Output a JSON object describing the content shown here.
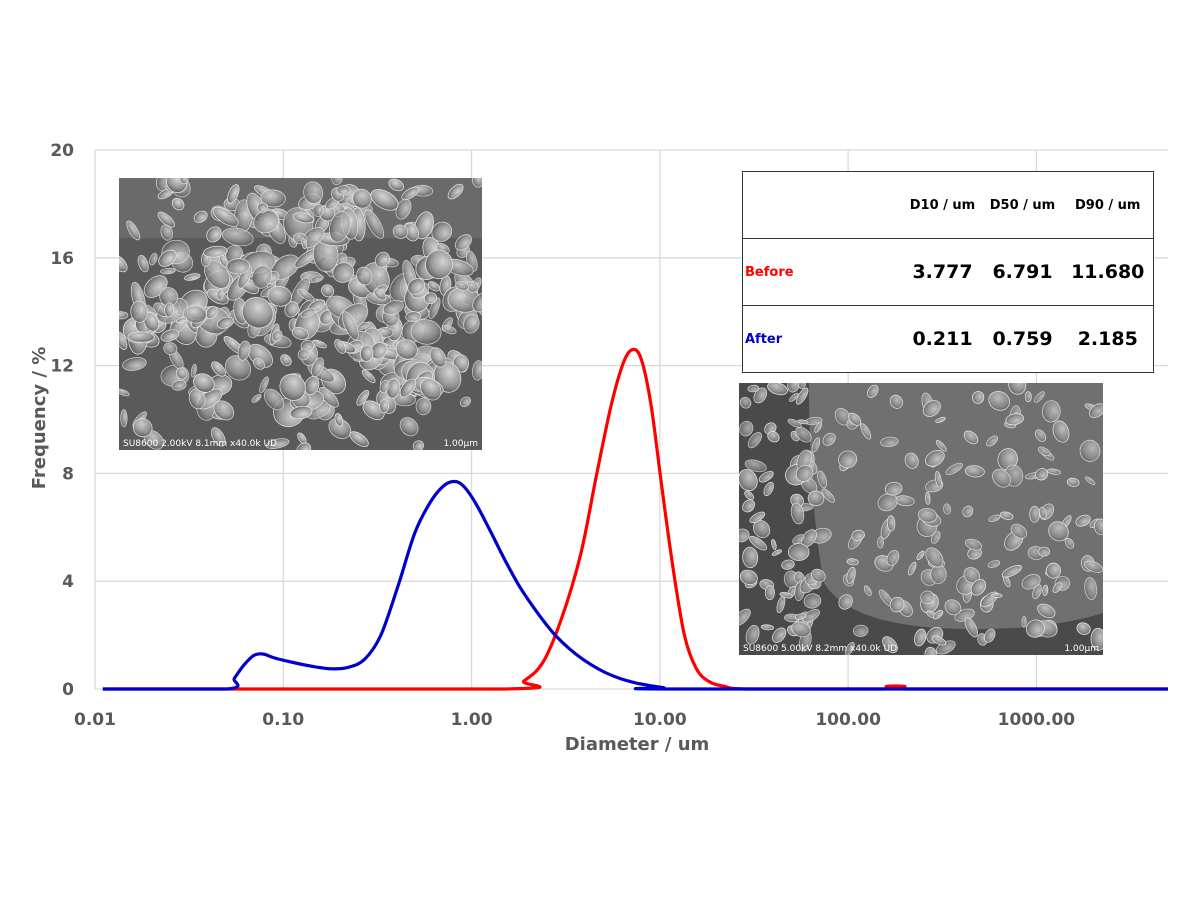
{
  "chart_data": {
    "type": "line",
    "xlabel": "Diameter / um",
    "ylabel": "Frequency / %",
    "x_scale": "log",
    "xlim": [
      0.01,
      5000
    ],
    "ylim": [
      0,
      20
    ],
    "x_ticks": [
      0.01,
      0.1,
      1,
      10,
      100,
      1000
    ],
    "x_tick_labels": [
      "0.01",
      "0.10",
      "1.00",
      "10.00",
      "100.00",
      "1000.00"
    ],
    "y_ticks": [
      0,
      4,
      8,
      12,
      16,
      20
    ],
    "y_tick_labels": [
      "0",
      "4",
      "8",
      "12",
      "16",
      "20"
    ],
    "grid": true,
    "series": [
      {
        "name": "Before",
        "color": "#ff0000",
        "points": [
          [
            0.011,
            0
          ],
          [
            1.5,
            0
          ],
          [
            1.9,
            0.3
          ],
          [
            2.4,
            1.0
          ],
          [
            3.0,
            2.6
          ],
          [
            3.8,
            5.0
          ],
          [
            4.6,
            7.9
          ],
          [
            5.5,
            10.5
          ],
          [
            6.4,
            12.1
          ],
          [
            7.2,
            12.6
          ],
          [
            8.0,
            12.2
          ],
          [
            9.0,
            10.5
          ],
          [
            10.2,
            7.6
          ],
          [
            11.8,
            4.4
          ],
          [
            13.5,
            2.0
          ],
          [
            15.5,
            0.8
          ],
          [
            18.0,
            0.3
          ],
          [
            22.0,
            0.1
          ],
          [
            30.0,
            0
          ],
          [
            150,
            0
          ],
          [
            160,
            0.1
          ],
          [
            200,
            0.1
          ],
          [
            215,
            0
          ],
          [
            5000,
            0
          ]
        ]
      },
      {
        "name": "After",
        "color": "#0000cc",
        "points": [
          [
            0.011,
            0
          ],
          [
            0.05,
            0
          ],
          [
            0.055,
            0.4
          ],
          [
            0.062,
            0.9
          ],
          [
            0.07,
            1.25
          ],
          [
            0.078,
            1.3
          ],
          [
            0.09,
            1.15
          ],
          [
            0.11,
            1.0
          ],
          [
            0.14,
            0.85
          ],
          [
            0.18,
            0.75
          ],
          [
            0.22,
            0.8
          ],
          [
            0.27,
            1.1
          ],
          [
            0.33,
            2.0
          ],
          [
            0.41,
            3.9
          ],
          [
            0.5,
            5.8
          ],
          [
            0.6,
            6.9
          ],
          [
            0.7,
            7.5
          ],
          [
            0.8,
            7.7
          ],
          [
            0.9,
            7.55
          ],
          [
            1.05,
            6.9
          ],
          [
            1.25,
            5.9
          ],
          [
            1.5,
            4.8
          ],
          [
            1.8,
            3.8
          ],
          [
            2.2,
            2.9
          ],
          [
            2.7,
            2.1
          ],
          [
            3.3,
            1.5
          ],
          [
            4.0,
            1.05
          ],
          [
            5.0,
            0.65
          ],
          [
            6.2,
            0.38
          ],
          [
            7.5,
            0.22
          ],
          [
            9.0,
            0.12
          ],
          [
            10.5,
            0.05
          ],
          [
            12.0,
            0
          ],
          [
            5000,
            0
          ]
        ]
      }
    ]
  },
  "table": {
    "headers": [
      "D10 / um",
      "D50 / um",
      "D90 / um"
    ],
    "rows": [
      {
        "label": "Before",
        "color": "#ff0000",
        "values": [
          "3.777",
          "6.791",
          "11.680"
        ]
      },
      {
        "label": "After",
        "color": "#0000cc",
        "values": [
          "0.211",
          "0.759",
          "2.185"
        ]
      }
    ]
  },
  "sem_images": [
    {
      "caption": "SU8600 2.00kV 8.1mm x40.0k UD",
      "scale": "1.00μm"
    },
    {
      "caption": "SU8600 5.00kV 8.2mm x40.0k UD",
      "scale": "1.00μm"
    }
  ]
}
